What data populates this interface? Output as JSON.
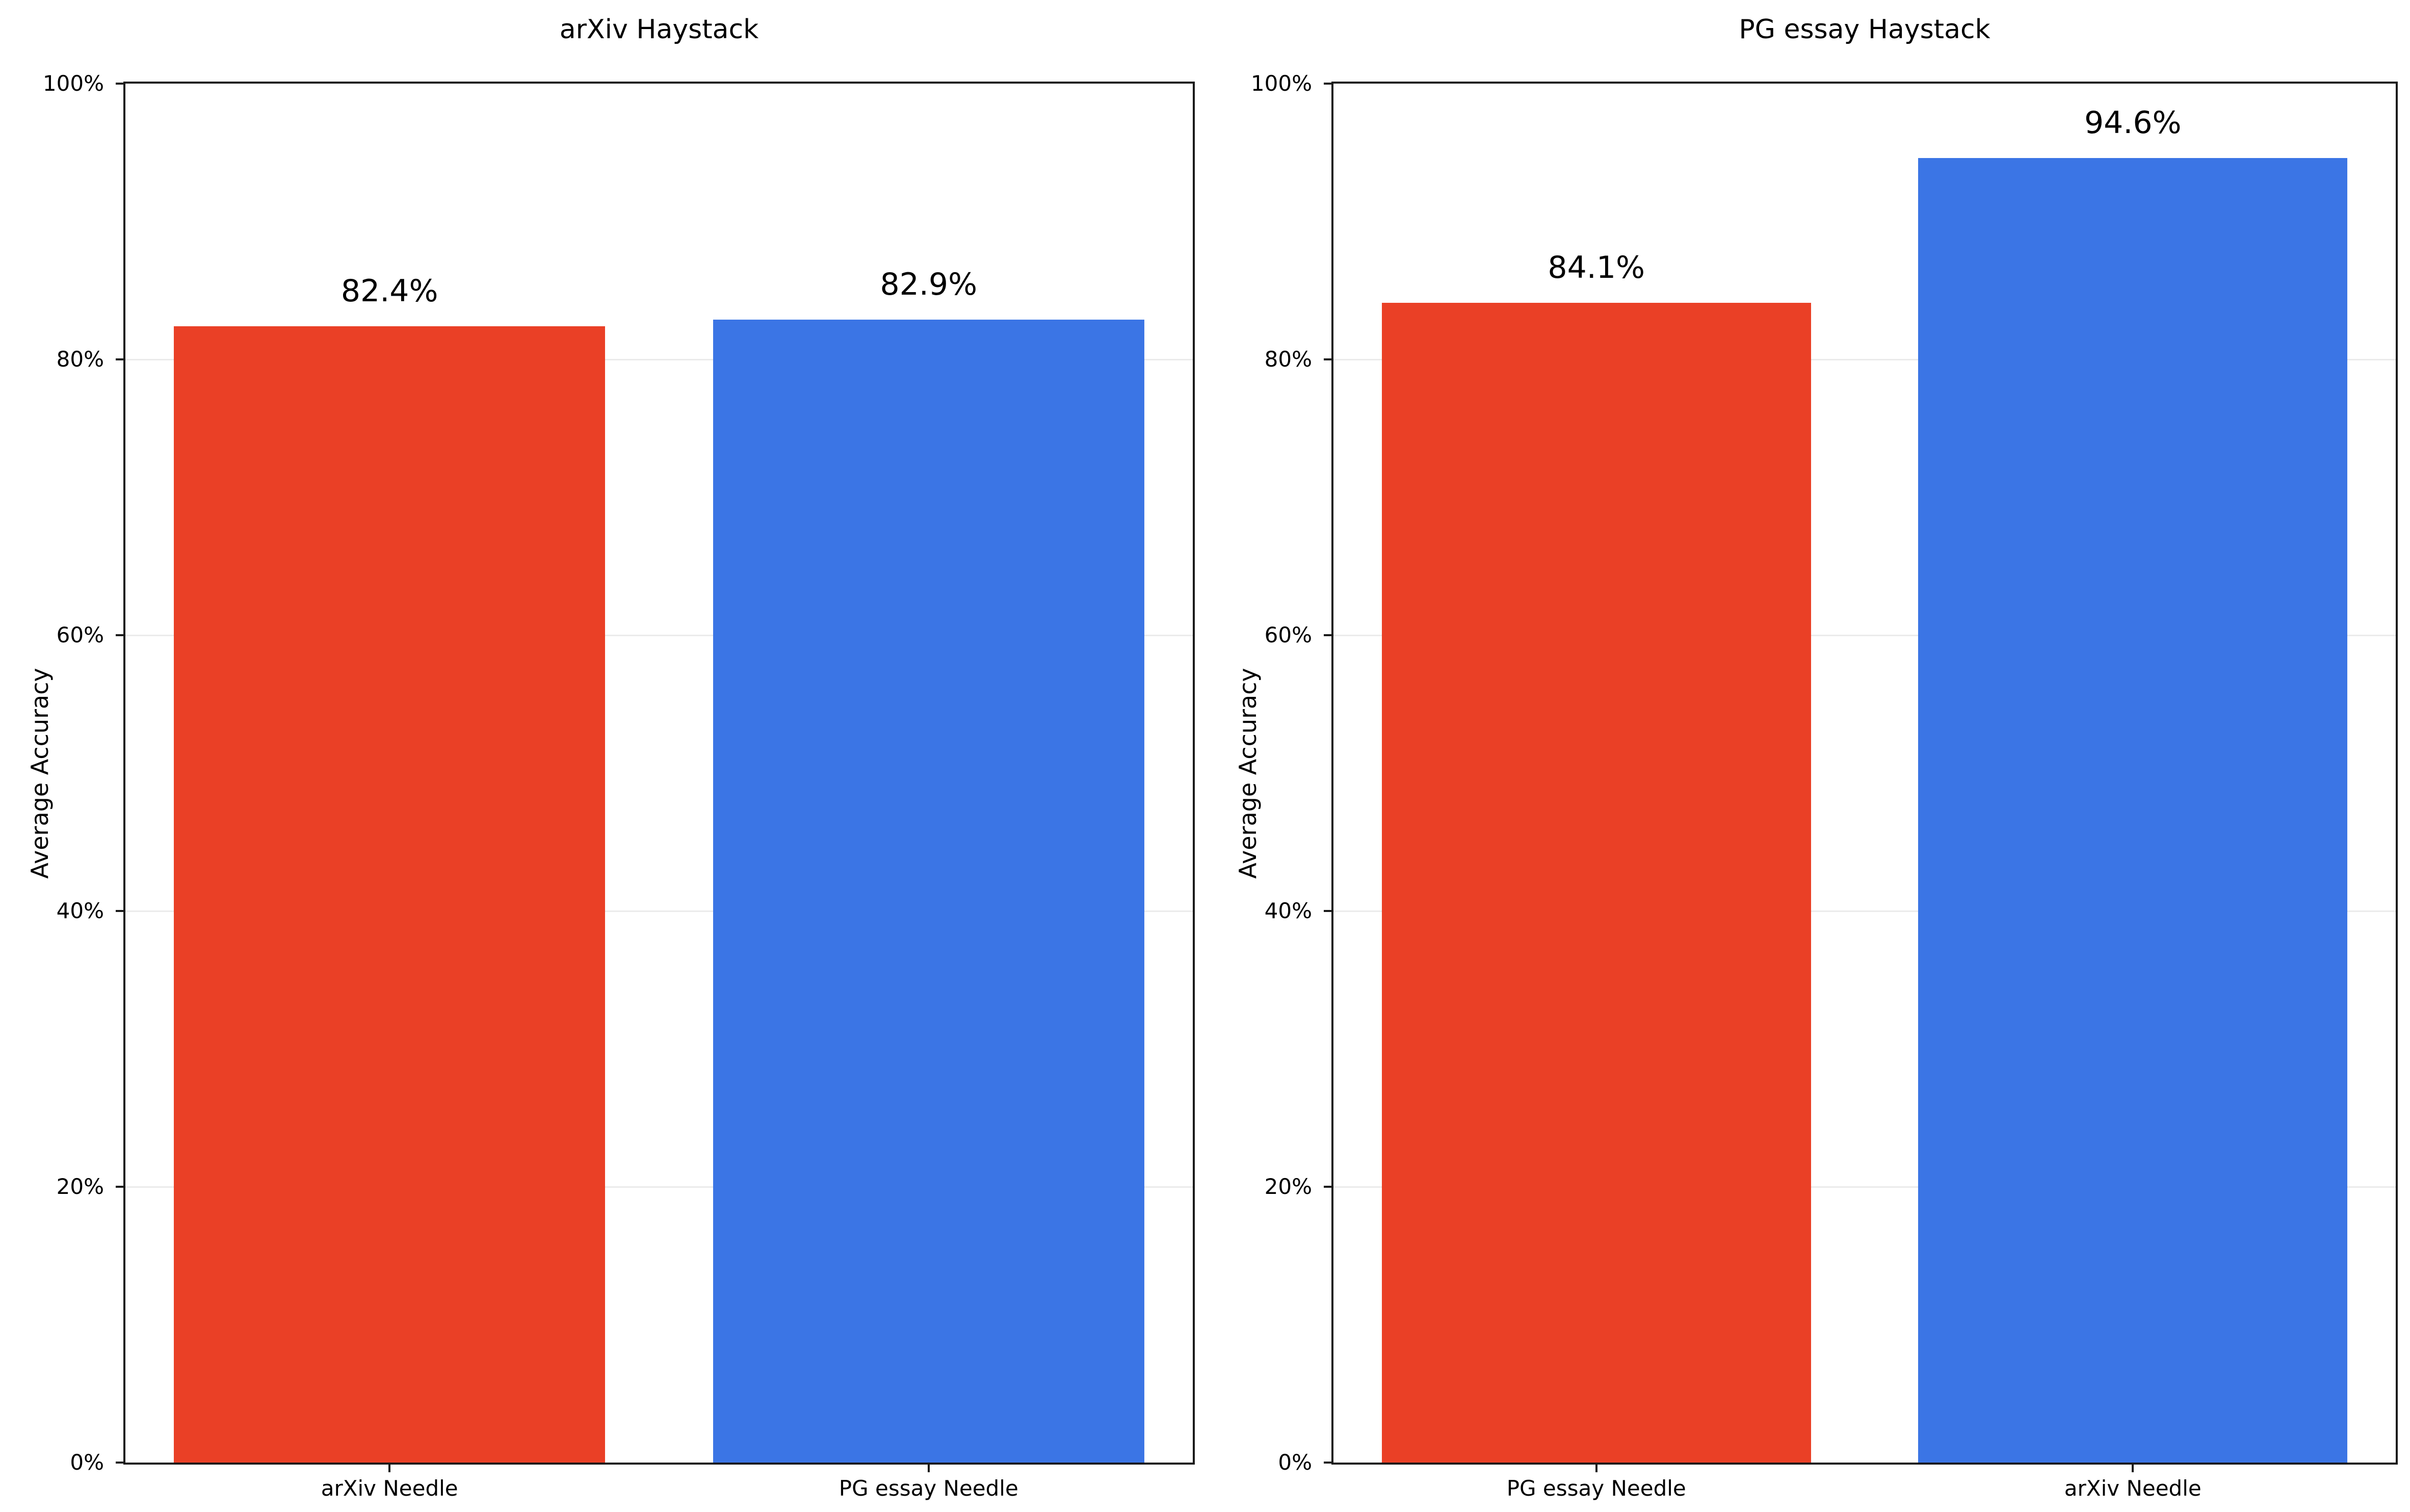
{
  "figure": {
    "background": "#ffffff",
    "text_color": "#000000",
    "spine_color": "#1a1a1a",
    "grid_color": "#ebebeb"
  },
  "chart_data": [
    {
      "type": "bar",
      "title": "arXiv Haystack",
      "ylabel": "Average Accuracy",
      "categories": [
        "arXiv Needle",
        "PG essay Needle"
      ],
      "values": [
        82.4,
        82.9
      ],
      "value_labels": [
        "82.4%",
        "82.9%"
      ],
      "bar_colors": [
        "#ea4026",
        "#3b75e5"
      ],
      "ylim": [
        0,
        100
      ],
      "ytick_values": [
        0,
        20,
        40,
        60,
        80,
        100
      ],
      "ytick_labels": [
        "0%",
        "20%",
        "40%",
        "60%",
        "80%",
        "100%"
      ],
      "grid": "horizontal",
      "legend": "none"
    },
    {
      "type": "bar",
      "title": "PG essay Haystack",
      "ylabel": "Average Accuracy",
      "categories": [
        "PG essay Needle",
        "arXiv Needle"
      ],
      "values": [
        84.1,
        94.6
      ],
      "value_labels": [
        "84.1%",
        "94.6%"
      ],
      "bar_colors": [
        "#ea4026",
        "#3b75e5"
      ],
      "ylim": [
        0,
        100
      ],
      "ytick_values": [
        0,
        20,
        40,
        60,
        80,
        100
      ],
      "ytick_labels": [
        "0%",
        "20%",
        "40%",
        "60%",
        "80%",
        "100%"
      ],
      "grid": "horizontal",
      "legend": "none"
    }
  ]
}
